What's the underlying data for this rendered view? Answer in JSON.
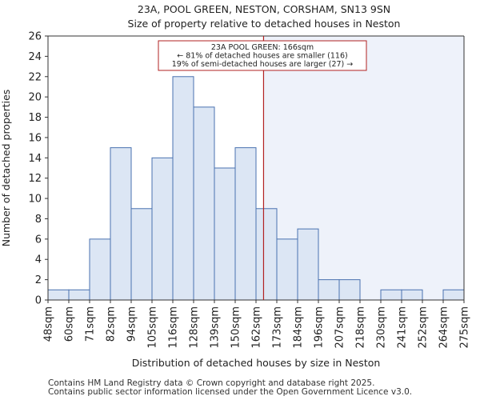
{
  "chart_data": {
    "type": "bar",
    "title": "23A, POOL GREEN, NESTON, CORSHAM, SN13 9SN",
    "subtitle": "Size of property relative to detached houses in Neston",
    "xlabel": "Distribution of detached houses by size in Neston",
    "ylabel": "Number of detached properties",
    "bin_edges": [
      48,
      60,
      71,
      82,
      94,
      105,
      116,
      128,
      139,
      150,
      162,
      173,
      184,
      196,
      207,
      218,
      230,
      241,
      252,
      264,
      275
    ],
    "tick_labels": [
      "48sqm",
      "60sqm",
      "71sqm",
      "82sqm",
      "94sqm",
      "105sqm",
      "116sqm",
      "128sqm",
      "139sqm",
      "150sqm",
      "162sqm",
      "173sqm",
      "184sqm",
      "196sqm",
      "207sqm",
      "218sqm",
      "230sqm",
      "241sqm",
      "252sqm",
      "264sqm",
      "275sqm"
    ],
    "values": [
      1,
      1,
      6,
      15,
      9,
      14,
      22,
      19,
      13,
      15,
      9,
      6,
      7,
      2,
      2,
      0,
      1,
      1,
      0,
      1
    ],
    "ylim": [
      0,
      26
    ],
    "yticks": [
      0,
      2,
      4,
      6,
      8,
      10,
      12,
      14,
      16,
      18,
      20,
      22,
      24,
      26
    ],
    "property_size": 166,
    "annotation": {
      "line1": "23A POOL GREEN: 166sqm",
      "line2": "← 81% of detached houses are smaller (116)",
      "line3": "19% of semi-detached houses are larger (27) →"
    },
    "colors": {
      "bar_fill": "#dce6f4",
      "bar_edge": "#4a72b0",
      "highlight_region": "#eef2fa",
      "marker_line": "#b22222",
      "annotation_border": "#b22222"
    }
  },
  "footer": {
    "line1": "Contains HM Land Registry data © Crown copyright and database right 2025.",
    "line2": "Contains public sector information licensed under the Open Government Licence v3.0."
  }
}
